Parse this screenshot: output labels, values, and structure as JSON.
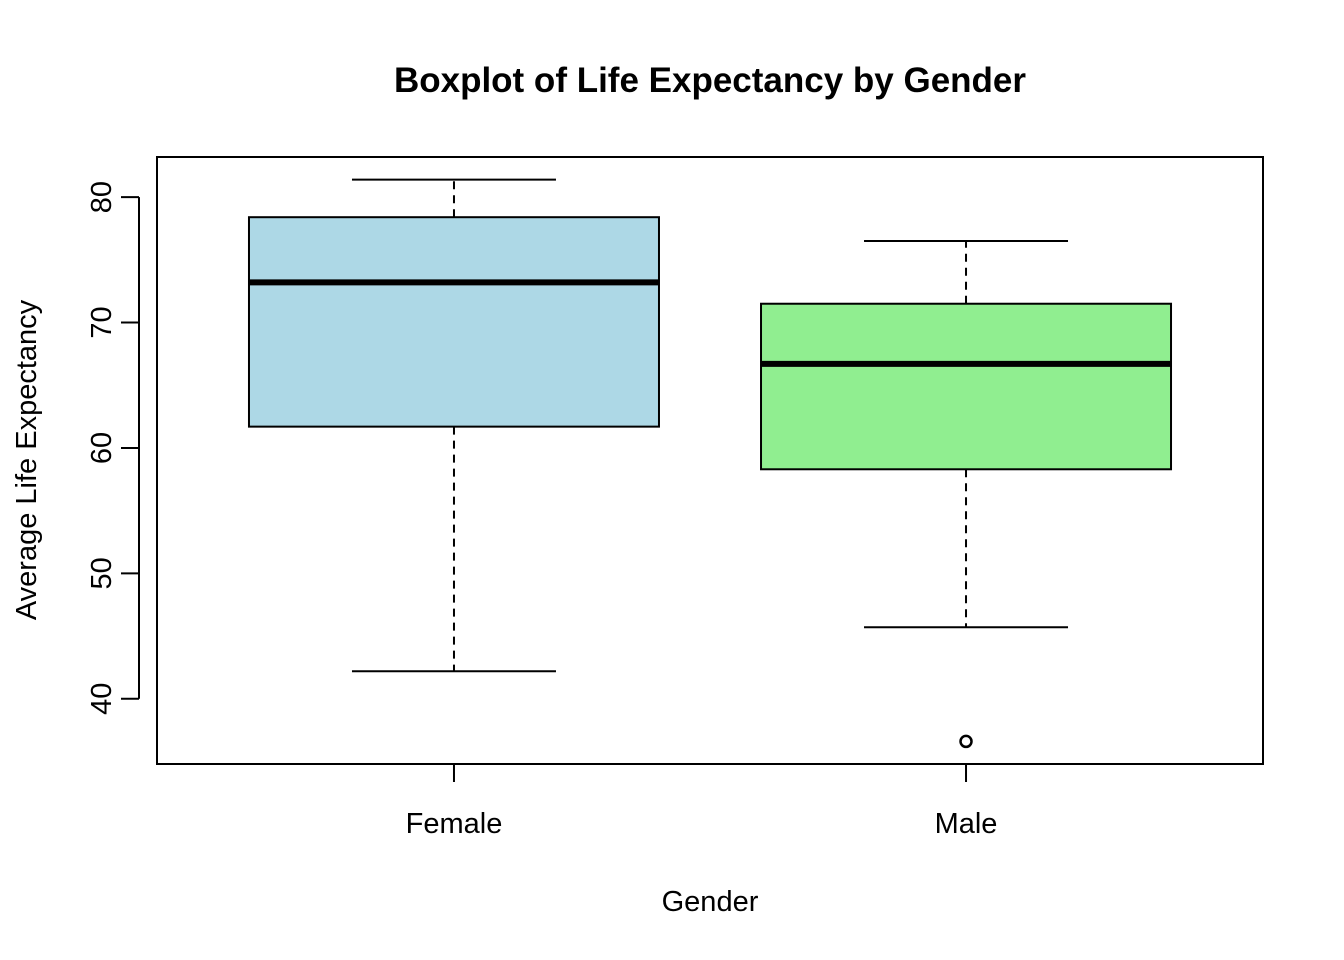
{
  "chart_data": {
    "type": "boxplot",
    "title": "Boxplot of Life Expectancy by Gender",
    "xlabel": "Gender",
    "ylabel": "Average Life Expectancy",
    "ylim": [
      34.8,
      83.2
    ],
    "yticks": [
      40,
      50,
      60,
      70,
      80
    ],
    "grid": false,
    "legend": "none",
    "categories": [
      "Female",
      "Male"
    ],
    "boxes": [
      {
        "category": "Female",
        "color": "#add8e6",
        "whisker_low": 42.2,
        "q1": 61.7,
        "median": 73.2,
        "q3": 78.4,
        "whisker_high": 81.4,
        "outliers": []
      },
      {
        "category": "Male",
        "color": "#90ee90",
        "whisker_low": 45.7,
        "q1": 58.3,
        "median": 66.7,
        "q3": 71.5,
        "whisker_high": 76.5,
        "outliers": [
          36.6
        ]
      }
    ]
  }
}
